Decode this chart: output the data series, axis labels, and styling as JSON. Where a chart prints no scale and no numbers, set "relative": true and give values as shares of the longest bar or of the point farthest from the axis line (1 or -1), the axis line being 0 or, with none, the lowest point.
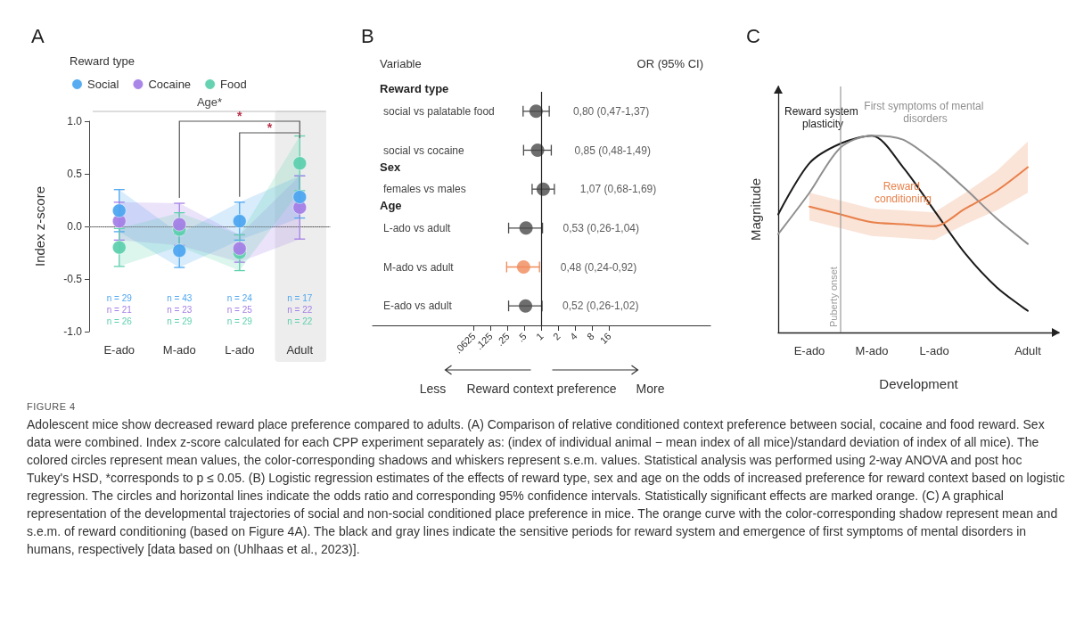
{
  "chart_data": [
    {
      "type": "scatter",
      "title": "A",
      "ylabel": "Index z-score",
      "legend_title": "Reward type",
      "legend": "top left",
      "marker": "circle",
      "categories": [
        "E-ado",
        "M-ado",
        "L-ado",
        "Adult"
      ],
      "ylim": [
        -1,
        1
      ],
      "yticks": [
        {
          "value": -1,
          "label": "-1.0"
        },
        {
          "value": -0.5,
          "label": "-0.5"
        },
        {
          "value": 0,
          "label": "0.0"
        },
        {
          "value": 0.5,
          "label": "0.5"
        },
        {
          "value": 1,
          "label": "1.0"
        }
      ],
      "series": [
        {
          "name": "Social",
          "color": "#4ea7f0",
          "values": [
            0.15,
            -0.23,
            0.05,
            0.28
          ],
          "errors": [
            0.2,
            0.16,
            0.18,
            0.2
          ],
          "lower": [
            -0.05,
            -0.39,
            -0.13,
            0.08
          ],
          "upper": [
            0.35,
            -0.07,
            0.23,
            0.48
          ]
        },
        {
          "name": "Cocaine",
          "color": "#a47fe6",
          "values": [
            0.05,
            0.02,
            -0.21,
            0.18
          ],
          "errors": [
            0.18,
            0.2,
            0.13,
            0.3
          ],
          "lower": [
            -0.13,
            -0.18,
            -0.34,
            -0.12
          ],
          "upper": [
            0.23,
            0.22,
            -0.08,
            0.48
          ]
        },
        {
          "name": "Food",
          "color": "#5ed0ae",
          "values": [
            -0.2,
            -0.03,
            -0.25,
            0.6
          ],
          "errors": [
            0.18,
            0.16,
            0.17,
            0.26
          ],
          "lower": [
            -0.38,
            -0.19,
            -0.42,
            0.34
          ],
          "upper": [
            -0.02,
            0.13,
            -0.08,
            0.86
          ]
        }
      ],
      "ref_lines": [
        {
          "axis": "y",
          "value": 0,
          "color": "#aaaaaa",
          "line_style": "dotted"
        }
      ],
      "bands": [
        {
          "axis": "x",
          "from": "Adult",
          "to": "Adult",
          "color": "#ededed"
        }
      ],
      "annotations": [
        "Age*",
        "*",
        "*",
        "n = 29",
        "n = 21",
        "n = 26",
        "n = 43",
        "n = 23",
        "n = 29",
        "n = 24",
        "n = 25",
        "n = 29",
        "n = 17",
        "n = 22",
        "n = 22"
      ]
    },
    {
      "type": "scatter",
      "orientation": "horizontal",
      "title": "B",
      "xlabel": "Reward context preference",
      "log": "x",
      "marker": "circle",
      "categories": [
        "social vs palatable food",
        "social vs cocaine",
        "females vs males",
        "L-ado vs adult",
        "M-ado vs adult",
        "E-ado vs adult"
      ],
      "values": [
        0.8,
        0.85,
        1.07,
        0.53,
        0.48,
        0.52
      ],
      "errors": [
        [
          0.47,
          1.37
        ],
        [
          0.48,
          1.49
        ],
        [
          0.68,
          1.69
        ],
        [
          0.26,
          1.04
        ],
        [
          0.24,
          0.92
        ],
        [
          0.26,
          1.02
        ]
      ],
      "colors": [
        "#4a4a4a",
        "#4a4a4a",
        "#4a4a4a",
        "#4a4a4a",
        "#f08a5a",
        "#4a4a4a"
      ],
      "value_labels": [
        "0,80 (0,47-1,37)",
        "0,85 (0,48-1,49)",
        "1,07 (0,68-1,69)",
        "0,53 (0,26-1,04)",
        "0,48 (0,24-0,92)",
        "0,52 (0,26-1,02)"
      ],
      "xlim": [
        0.001,
        1000
      ],
      "xticks": [
        {
          "value": 0.0625,
          "label": ".0625"
        },
        {
          "value": 0.125,
          "label": ".125"
        },
        {
          "value": 0.25,
          "label": ".25"
        },
        {
          "value": 0.5,
          "label": ".5"
        },
        1,
        2,
        4,
        8,
        16
      ],
      "ref_lines": [
        {
          "axis": "x",
          "value": 1,
          "color": "#222222"
        }
      ],
      "annotations": [
        "Variable",
        "OR (95% CI)",
        "Less",
        "More",
        "Reward type",
        "Sex",
        "Age"
      ]
    },
    {
      "type": "line",
      "title": "C",
      "xlabel": "Development",
      "ylabel": "Magnitude",
      "relative": true,
      "marker": "none",
      "categories": [
        null,
        "E-ado",
        null,
        "M-ado",
        null,
        "L-ado",
        null,
        null,
        "Adult",
        null
      ],
      "series": [
        {
          "name": "Reward system plasticity",
          "color": "#1a1a1a",
          "values": [
            0.6,
            0.86,
            0.96,
            1,
            0.84,
            0.62,
            0.4,
            0.23,
            0.11,
            null
          ]
        },
        {
          "name": "First symptoms of mental disorders",
          "color": "#8f8f8f",
          "values": [
            0.5,
            0.71,
            0.94,
            1,
            0.98,
            0.87,
            0.73,
            0.58,
            0.45,
            null
          ]
        },
        {
          "name": "Reward conditioning",
          "color": "#e8804a",
          "values": [
            null,
            0.64,
            0.6,
            0.56,
            0.55,
            0.54,
            0.63,
            0.72,
            0.84,
            null
          ],
          "lower": [
            null,
            0.57,
            0.53,
            0.49,
            0.48,
            0.47,
            0.55,
            0.62,
            0.71,
            null
          ],
          "upper": [
            null,
            0.71,
            0.67,
            0.63,
            0.62,
            0.61,
            0.71,
            0.82,
            0.97,
            null
          ]
        }
      ],
      "annotations": [
        "Puberty onset",
        "FIGURE 4",
        "Adolescent mice show decreased reward place preference compared to adults. (A) Comparison of relative conditioned context preference between social, cocaine and food reward. Sex data were combined. Index z-score calculated for each CPP experiment separately as: (index of individual animal − mean index of all mice)/standard deviation of index of all mice). The colored circles represent mean values, the color-corresponding shadows and whiskers represent s.e.m. values. Statistical analysis was performed using 2-way ANOVA and post hoc Tukey's HSD, *corresponds to p ≤ 0.05. (B) Logistic regression estimates of the effects of reward type, sex and age on the odds of increased preference for reward context based on logistic regression. The circles and horizontal lines indicate the odds ratio and corresponding 95% confidence intervals. Statistically significant effects are marked orange. (C) A graphical representation of the developmental trajectories of social and non-social conditioned place preference in mice. The orange curve with the color-corresponding shadow represent mean and s.e.m. of reward conditioning (based on Figure 4A). The black and gray lines indicate the sensitive periods for reward system and emergence of first symptoms of mental disorders in humans, respectively [data based on (Uhlhaas et al., 2023)]."
      ]
    }
  ]
}
